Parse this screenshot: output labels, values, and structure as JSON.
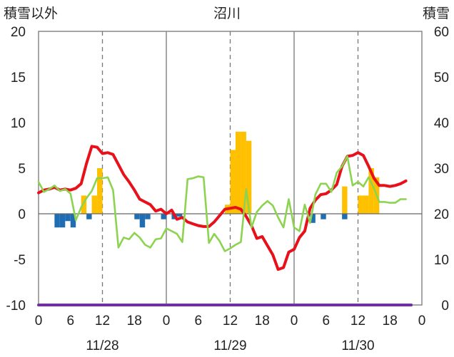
{
  "chart_data": {
    "type": "line",
    "title": "沼川",
    "left_axis_label": "積雪以外",
    "right_axis_label": "積雪",
    "ylim_left": [
      -10,
      20
    ],
    "ylim_right": [
      0,
      60
    ],
    "left_ticks": [
      "20",
      "15",
      "10",
      "5",
      "0",
      "-5",
      "-10"
    ],
    "right_ticks": [
      "60",
      "50",
      "40",
      "30",
      "20",
      "10",
      "0"
    ],
    "x_ticks": [
      "0",
      "6",
      "12",
      "18",
      "0",
      "6",
      "12",
      "18",
      "0",
      "6",
      "12",
      "18",
      "0"
    ],
    "day_labels": [
      "11/28",
      "11/29",
      "11/30"
    ],
    "hours_total": 72,
    "series": [
      {
        "color": "#e8101a",
        "points": [
          [
            0,
            2.3
          ],
          [
            1,
            2.6
          ],
          [
            2,
            2.7
          ],
          [
            3,
            2.9
          ],
          [
            4,
            2.6
          ],
          [
            5,
            2.7
          ],
          [
            6,
            2.6
          ],
          [
            7,
            2.8
          ],
          [
            8,
            3.3
          ],
          [
            9,
            5.5
          ],
          [
            10,
            7.4
          ],
          [
            11,
            7.3
          ],
          [
            12,
            6.6
          ],
          [
            13,
            6.7
          ],
          [
            14,
            6.5
          ],
          [
            15,
            5.4
          ],
          [
            16,
            4.3
          ],
          [
            17,
            3.5
          ],
          [
            18,
            2.6
          ],
          [
            19,
            1.6
          ],
          [
            20,
            1.3
          ],
          [
            21,
            1.0
          ],
          [
            22,
            0.3
          ],
          [
            23,
            0.5
          ],
          [
            24,
            0.0
          ],
          [
            25,
            0.4
          ],
          [
            26,
            -0.6
          ],
          [
            27,
            -0.4
          ],
          [
            28,
            -0.9
          ],
          [
            29,
            -1.1
          ],
          [
            30,
            -1.3
          ],
          [
            31,
            -1.4
          ],
          [
            32,
            -1.4
          ],
          [
            33,
            -0.9
          ],
          [
            34,
            -0.2
          ],
          [
            35,
            0.5
          ],
          [
            36,
            0.6
          ],
          [
            37,
            0.7
          ],
          [
            38,
            0.5
          ],
          [
            39,
            -0.3
          ],
          [
            40,
            -1.3
          ],
          [
            41,
            -2.7
          ],
          [
            42,
            -2.5
          ],
          [
            43,
            -3.5
          ],
          [
            44,
            -4.5
          ],
          [
            45,
            -6.1
          ],
          [
            46,
            -5.9
          ],
          [
            47,
            -4.2
          ],
          [
            48,
            -3.9
          ],
          [
            49,
            -2.6
          ],
          [
            50,
            -1.9
          ],
          [
            51,
            0.6
          ],
          [
            52,
            1.5
          ],
          [
            53,
            2.1
          ],
          [
            54,
            2.2
          ],
          [
            55,
            2.6
          ],
          [
            56,
            3.2
          ],
          [
            57,
            5.2
          ],
          [
            58,
            6.3
          ],
          [
            59,
            6.4
          ],
          [
            60,
            6.7
          ],
          [
            61,
            6.4
          ],
          [
            62,
            5.2
          ],
          [
            63,
            3.9
          ],
          [
            64,
            3.1
          ],
          [
            65,
            3.1
          ],
          [
            66,
            3.0
          ],
          [
            67,
            3.1
          ],
          [
            68,
            3.3
          ],
          [
            69,
            3.6
          ]
        ]
      },
      {
        "color": "#8cd450",
        "points": [
          [
            0,
            3.5
          ],
          [
            1,
            2.4
          ],
          [
            2,
            2.7
          ],
          [
            3,
            3.1
          ],
          [
            4,
            2.5
          ],
          [
            5,
            2.7
          ],
          [
            6,
            2.2
          ],
          [
            7,
            -0.7
          ],
          [
            8,
            0.7
          ],
          [
            9,
            1.7
          ],
          [
            10,
            2.5
          ],
          [
            11,
            3.9
          ],
          [
            12,
            3.9
          ],
          [
            13,
            4.0
          ],
          [
            14,
            2.6
          ],
          [
            15,
            -3.7
          ],
          [
            16,
            -2.6
          ],
          [
            17,
            -2.8
          ],
          [
            18,
            -2.1
          ],
          [
            19,
            -2.6
          ],
          [
            20,
            -3.4
          ],
          [
            21,
            -3.7
          ],
          [
            22,
            -2.8
          ],
          [
            23,
            -2.7
          ],
          [
            24,
            -1.6
          ],
          [
            25,
            -1.9
          ],
          [
            26,
            -2.2
          ],
          [
            27,
            -3.1
          ],
          [
            28,
            3.8
          ],
          [
            29,
            3.9
          ],
          [
            30,
            4.1
          ],
          [
            31,
            4.0
          ],
          [
            32,
            -3.2
          ],
          [
            33,
            -2.2
          ],
          [
            34,
            -3.0
          ],
          [
            35,
            -4.1
          ],
          [
            36,
            -3.8
          ],
          [
            37,
            -3.4
          ],
          [
            38,
            -3.1
          ],
          [
            39,
            2.7
          ],
          [
            40,
            -1.5
          ],
          [
            41,
            0.2
          ],
          [
            42,
            0.9
          ],
          [
            43,
            1.4
          ],
          [
            44,
            0.9
          ],
          [
            45,
            -0.4
          ],
          [
            46,
            -1.5
          ],
          [
            47,
            1.6
          ],
          [
            48,
            -1.5
          ],
          [
            49,
            -1.9
          ],
          [
            50,
            1.0
          ],
          [
            51,
            -1.0
          ],
          [
            52,
            2.1
          ],
          [
            53,
            3.3
          ],
          [
            54,
            3.3
          ],
          [
            55,
            2.4
          ],
          [
            56,
            4.5
          ],
          [
            57,
            5.2
          ],
          [
            58,
            6.3
          ],
          [
            59,
            3.1
          ],
          [
            60,
            3.5
          ],
          [
            61,
            3.0
          ],
          [
            62,
            4.0
          ],
          [
            63,
            2.8
          ],
          [
            64,
            1.3
          ],
          [
            65,
            1.3
          ],
          [
            66,
            1.2
          ],
          [
            67,
            1.2
          ],
          [
            68,
            1.6
          ],
          [
            69,
            1.6
          ]
        ]
      },
      {
        "color": "#7030a0",
        "points": [
          [
            0,
            -10
          ],
          [
            70,
            -10
          ]
        ]
      }
    ],
    "bars_positive": {
      "color": "#ffc000",
      "axis": "right",
      "bars": [
        [
          8,
          24
        ],
        [
          10,
          24
        ],
        [
          11,
          30
        ],
        [
          35,
          22
        ],
        [
          36,
          34
        ],
        [
          37,
          38
        ],
        [
          38,
          38
        ],
        [
          39,
          36
        ],
        [
          57,
          26
        ],
        [
          60,
          24
        ],
        [
          61,
          24
        ],
        [
          62,
          30
        ],
        [
          63,
          28
        ]
      ]
    },
    "bars_negative": {
      "color": "#1f6eb4",
      "axis": "left",
      "bars": [
        [
          3,
          -1.5
        ],
        [
          4,
          -1.5
        ],
        [
          5,
          -0.8
        ],
        [
          6,
          -1.5
        ],
        [
          9,
          -0.6
        ],
        [
          18,
          -0.6
        ],
        [
          19,
          -1.5
        ],
        [
          20,
          -0.6
        ],
        [
          23,
          -0.6
        ],
        [
          25,
          -0.6
        ],
        [
          26,
          -0.3
        ],
        [
          51,
          -1.0
        ],
        [
          53,
          -0.6
        ],
        [
          57,
          -0.6
        ]
      ]
    }
  }
}
